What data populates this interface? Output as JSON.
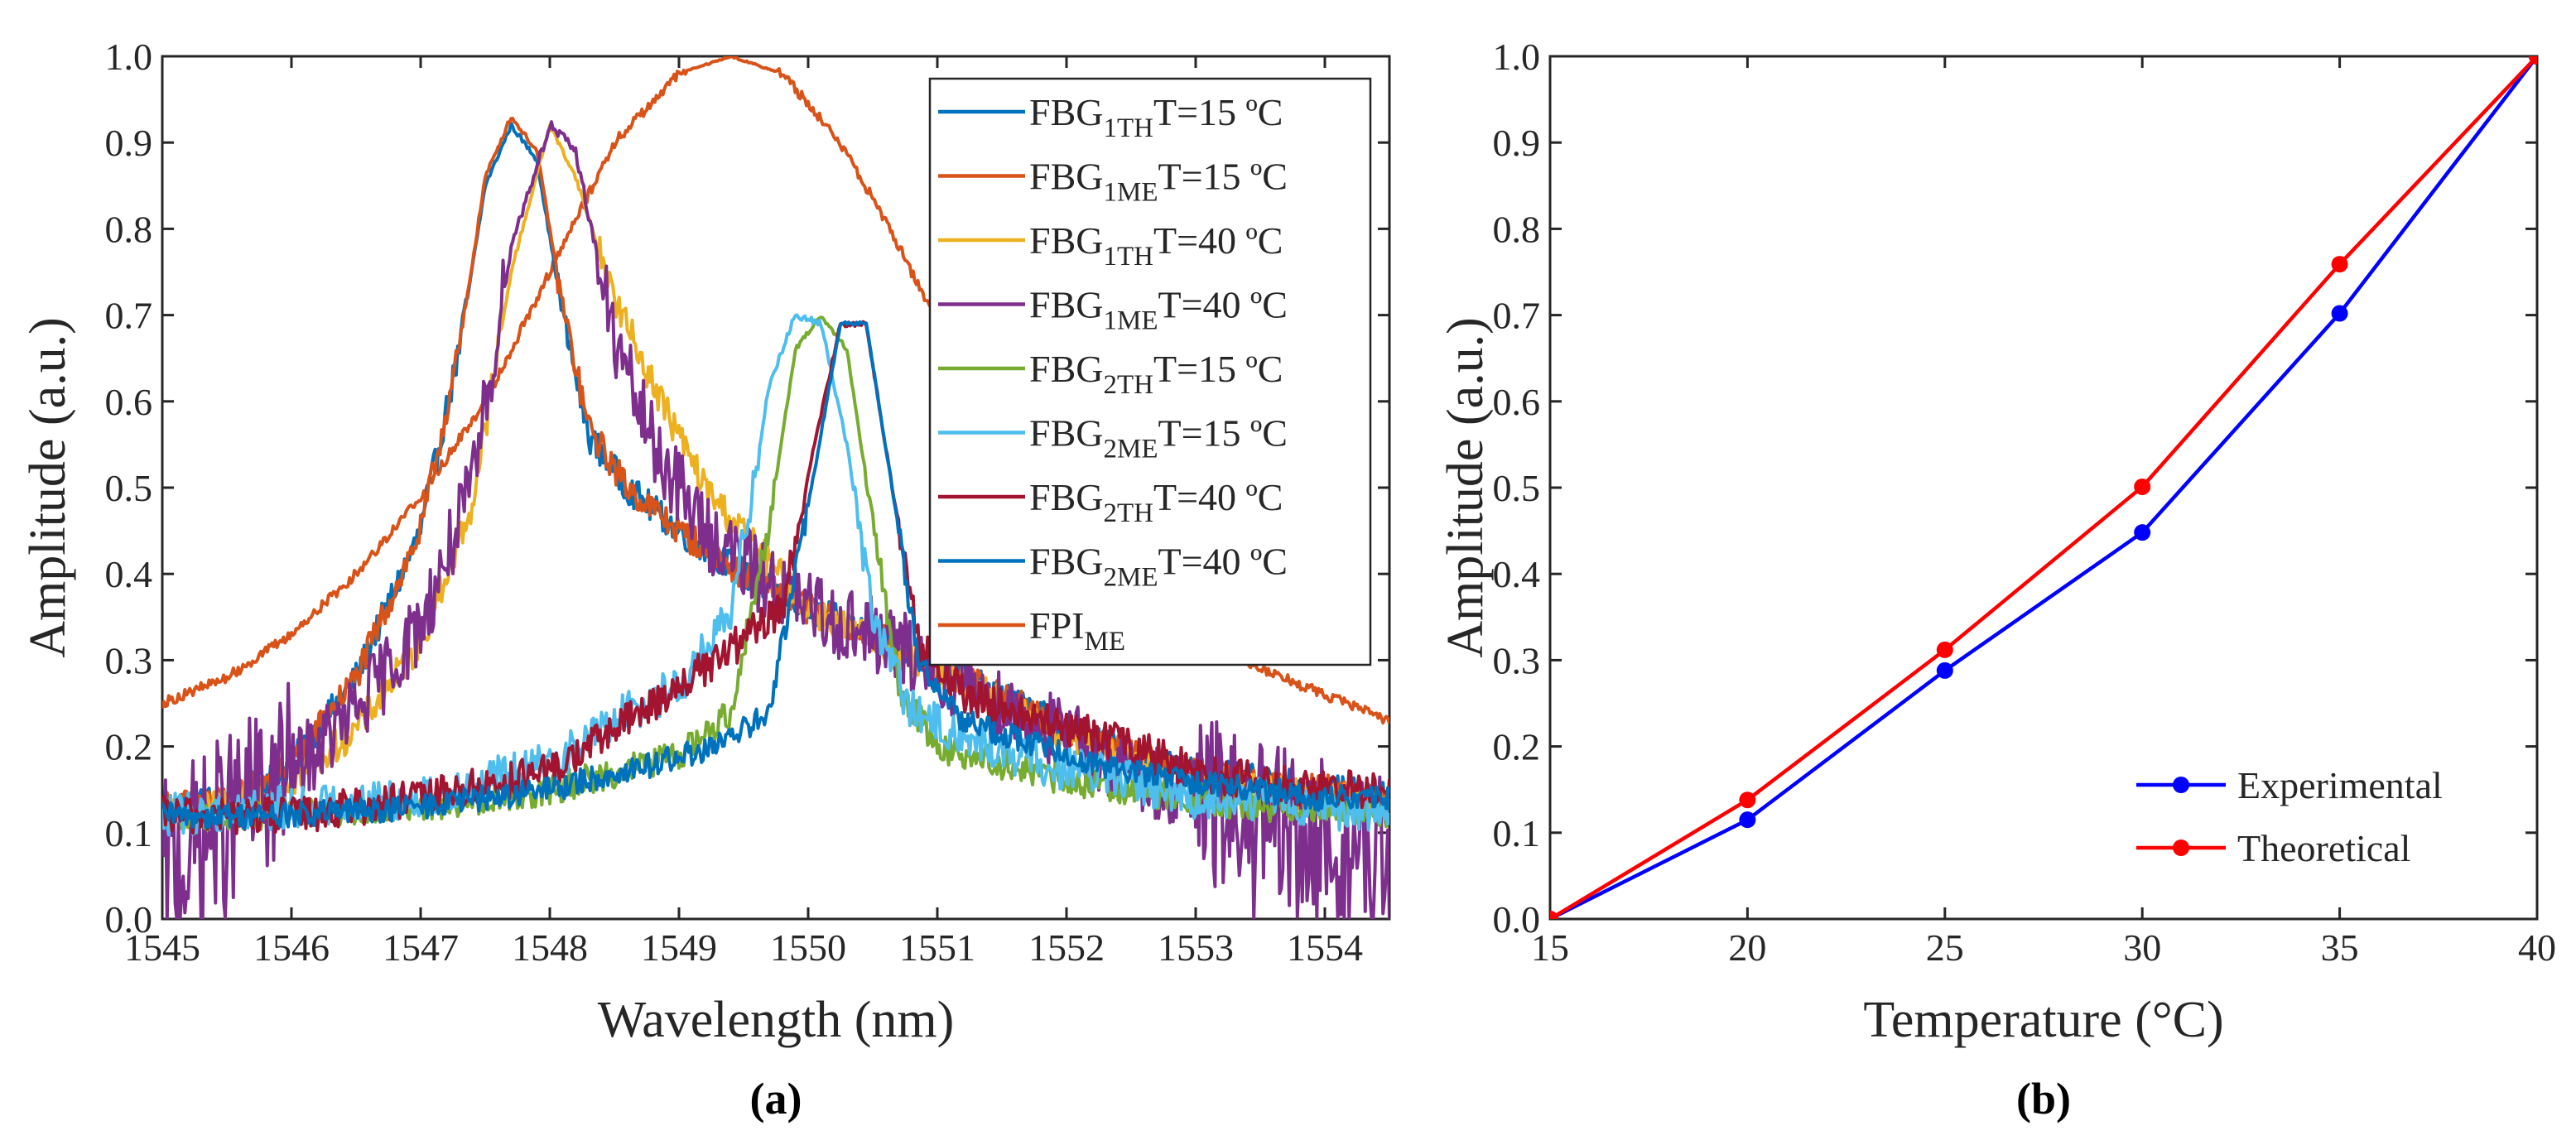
{
  "chart_data": [
    {
      "type": "line",
      "panel_label": "(a)",
      "xlabel": "Wavelength (nm)",
      "ylabel": "Amplitude (a.u.)",
      "xlim": [
        1545,
        1554.5
      ],
      "ylim": [
        0,
        1
      ],
      "xticks": [
        "1545",
        "1546",
        "1547",
        "1548",
        "1549",
        "1550",
        "1551",
        "1552",
        "1553",
        "1554"
      ],
      "yticks": [
        "0.0",
        "0.1",
        "0.2",
        "0.3",
        "0.4",
        "0.5",
        "0.6",
        "0.7",
        "0.8",
        "0.9",
        "1.0"
      ],
      "grid": false,
      "legend_position": "top-right",
      "series": [
        {
          "name": "FBG",
          "sub": "1TH",
          "suffix": "T=15 ºC",
          "color": "#0072BD",
          "peak": 1547.7,
          "amp": 0.92,
          "noise": 0.018,
          "x": [
            1545.0,
            1545.5,
            1546.0,
            1546.5,
            1547.0,
            1547.3,
            1547.5,
            1547.7,
            1547.9,
            1548.1,
            1548.3,
            1548.6,
            1549.0,
            1549.5,
            1550.0,
            1550.5,
            1551.0,
            1551.5,
            1552.0,
            1552.5,
            1553.0,
            1553.5,
            1554.0,
            1554.5
          ],
          "y": [
            0.13,
            0.14,
            0.18,
            0.28,
            0.45,
            0.66,
            0.85,
            0.92,
            0.88,
            0.7,
            0.56,
            0.5,
            0.45,
            0.4,
            0.36,
            0.33,
            0.29,
            0.26,
            0.22,
            0.19,
            0.17,
            0.16,
            0.15,
            0.14
          ]
        },
        {
          "name": "FBG",
          "sub": "1ME",
          "suffix": "T=15 ºC",
          "color": "#D95319",
          "peak": 1547.7,
          "amp": 0.93,
          "noise": 0.018,
          "x": [
            1545.0,
            1545.5,
            1546.0,
            1546.5,
            1547.0,
            1547.3,
            1547.5,
            1547.7,
            1547.9,
            1548.1,
            1548.3,
            1548.6,
            1549.0,
            1549.5,
            1550.0,
            1550.5,
            1551.0,
            1551.5,
            1552.0,
            1552.5,
            1553.0,
            1553.5,
            1554.0,
            1554.5
          ],
          "y": [
            0.13,
            0.14,
            0.18,
            0.28,
            0.45,
            0.66,
            0.86,
            0.93,
            0.89,
            0.71,
            0.57,
            0.5,
            0.45,
            0.4,
            0.36,
            0.33,
            0.29,
            0.26,
            0.22,
            0.19,
            0.17,
            0.16,
            0.15,
            0.14
          ]
        },
        {
          "name": "FBG",
          "sub": "1TH",
          "suffix": "T=40 ºC",
          "color": "#EDB120",
          "peak": 1548.0,
          "amp": 0.92,
          "noise": 0.02,
          "x": [
            1545.0,
            1545.5,
            1546.0,
            1546.5,
            1547.0,
            1547.4,
            1547.7,
            1548.0,
            1548.2,
            1548.5,
            1548.8,
            1549.2,
            1549.6,
            1550.0,
            1550.5,
            1551.0,
            1551.5,
            1552.0,
            1552.5,
            1553.0,
            1553.5,
            1554.0,
            1554.5
          ],
          "y": [
            0.12,
            0.13,
            0.16,
            0.22,
            0.32,
            0.48,
            0.75,
            0.92,
            0.86,
            0.72,
            0.62,
            0.5,
            0.43,
            0.36,
            0.32,
            0.29,
            0.25,
            0.21,
            0.18,
            0.16,
            0.15,
            0.14,
            0.13
          ]
        },
        {
          "name": "FBG",
          "sub": "1ME",
          "suffix": "T=40 ºC",
          "color": "#7E2F8E",
          "peak": 1548.0,
          "amp": 0.92,
          "noise": 0.045,
          "x": [
            1545.0,
            1545.5,
            1546.0,
            1546.5,
            1547.0,
            1547.4,
            1547.7,
            1548.0,
            1548.2,
            1548.5,
            1548.8,
            1549.2,
            1549.6,
            1550.0,
            1550.5,
            1551.0,
            1551.5,
            1552.0,
            1552.5,
            1553.0,
            1553.5,
            1554.0,
            1554.5
          ],
          "y": [
            0.05,
            0.11,
            0.17,
            0.24,
            0.34,
            0.5,
            0.78,
            0.92,
            0.89,
            0.67,
            0.55,
            0.45,
            0.4,
            0.36,
            0.33,
            0.29,
            0.25,
            0.21,
            0.17,
            0.14,
            0.1,
            0.08,
            0.06
          ]
        },
        {
          "name": "FBG",
          "sub": "2TH",
          "suffix": "T=15 ºC",
          "color": "#77AC30",
          "peak": 1550.1,
          "amp": 0.7,
          "noise": 0.018,
          "x": [
            1545.0,
            1546.0,
            1547.0,
            1548.0,
            1549.0,
            1549.4,
            1549.7,
            1549.9,
            1550.1,
            1550.3,
            1550.5,
            1550.7,
            1551.0,
            1551.5,
            1552.0,
            1552.5,
            1553.0,
            1553.5,
            1554.0,
            1554.5
          ],
          "y": [
            0.12,
            0.12,
            0.13,
            0.15,
            0.19,
            0.24,
            0.46,
            0.66,
            0.7,
            0.66,
            0.46,
            0.27,
            0.2,
            0.18,
            0.16,
            0.15,
            0.14,
            0.13,
            0.13,
            0.12
          ]
        },
        {
          "name": "FBG",
          "sub": "2ME",
          "suffix": "T=15 ºC",
          "color": "#4DBEEE",
          "peak": 1550.0,
          "amp": 0.7,
          "noise": 0.025,
          "x": [
            1545.0,
            1546.0,
            1547.0,
            1548.0,
            1548.6,
            1549.0,
            1549.4,
            1549.7,
            1549.9,
            1550.1,
            1550.3,
            1550.5,
            1550.8,
            1551.2,
            1551.8,
            1552.5,
            1553.0,
            1553.5,
            1554.0,
            1554.5
          ],
          "y": [
            0.12,
            0.13,
            0.14,
            0.18,
            0.24,
            0.27,
            0.35,
            0.62,
            0.7,
            0.69,
            0.55,
            0.35,
            0.24,
            0.21,
            0.18,
            0.16,
            0.14,
            0.14,
            0.13,
            0.12
          ]
        },
        {
          "name": "FBG",
          "sub": "2TH",
          "suffix": "T=40 ºC",
          "color": "#A2142F",
          "peak": 1550.35,
          "amp": 0.7,
          "noise": 0.022,
          "x": [
            1545.0,
            1546.0,
            1547.0,
            1548.0,
            1548.8,
            1549.3,
            1549.8,
            1550.05,
            1550.25,
            1550.45,
            1550.65,
            1550.85,
            1551.2,
            1551.8,
            1552.5,
            1553.0,
            1553.5,
            1554.0,
            1554.5
          ],
          "y": [
            0.12,
            0.12,
            0.14,
            0.17,
            0.25,
            0.3,
            0.36,
            0.55,
            0.69,
            0.69,
            0.5,
            0.32,
            0.26,
            0.23,
            0.2,
            0.17,
            0.16,
            0.15,
            0.15
          ]
        },
        {
          "name": "FBG",
          "sub": "2ME",
          "suffix": "T=40 ºC",
          "color": "#0072BD",
          "peak": 1550.35,
          "amp": 0.7,
          "noise": 0.015,
          "x": [
            1545.0,
            1546.0,
            1547.0,
            1548.0,
            1548.8,
            1549.3,
            1549.7,
            1550.05,
            1550.25,
            1550.45,
            1550.65,
            1550.85,
            1551.2,
            1551.8,
            1552.5,
            1553.0,
            1553.5,
            1554.0,
            1554.5
          ],
          "y": [
            0.12,
            0.12,
            0.13,
            0.15,
            0.18,
            0.2,
            0.24,
            0.52,
            0.69,
            0.69,
            0.5,
            0.3,
            0.23,
            0.2,
            0.17,
            0.16,
            0.15,
            0.14,
            0.14
          ]
        },
        {
          "name": "FPI",
          "sub": "ME",
          "suffix": "",
          "color": "#D95319",
          "peak": 1549.4,
          "amp": 1.0,
          "noise": 0.006,
          "x": [
            1545.0,
            1545.5,
            1546.0,
            1546.5,
            1547.0,
            1547.5,
            1548.0,
            1548.5,
            1549.0,
            1549.4,
            1549.8,
            1550.2,
            1550.6,
            1551.0,
            1551.5,
            1552.0,
            1552.5,
            1553.0,
            1553.5,
            1554.0,
            1554.5
          ],
          "y": [
            0.25,
            0.28,
            0.33,
            0.4,
            0.49,
            0.6,
            0.75,
            0.9,
            0.98,
            1.0,
            0.98,
            0.91,
            0.81,
            0.69,
            0.56,
            0.46,
            0.38,
            0.33,
            0.29,
            0.26,
            0.23
          ]
        }
      ]
    },
    {
      "type": "line",
      "panel_label": "(b)",
      "xlabel": "Temperature (°C)",
      "ylabel": "Amplitude (a.u.)",
      "xlim": [
        15,
        40
      ],
      "ylim": [
        0,
        1
      ],
      "xticks": [
        "15",
        "20",
        "25",
        "30",
        "35",
        "40"
      ],
      "yticks": [
        "0.0",
        "0.1",
        "0.2",
        "0.3",
        "0.4",
        "0.5",
        "0.6",
        "0.7",
        "0.8",
        "0.9",
        "1.0"
      ],
      "grid": false,
      "legend_position": "bottom-right",
      "series": [
        {
          "name": "Experimental",
          "color": "#0000FF",
          "x": [
            15,
            20,
            25,
            30,
            35,
            40
          ],
          "y": [
            0.0,
            0.115,
            0.288,
            0.448,
            0.702,
            1.0
          ]
        },
        {
          "name": "Theoretical",
          "color": "#FF0000",
          "x": [
            15,
            20,
            25,
            30,
            35,
            40
          ],
          "y": [
            0.0,
            0.138,
            0.312,
            0.501,
            0.759,
            1.0
          ]
        }
      ]
    }
  ]
}
